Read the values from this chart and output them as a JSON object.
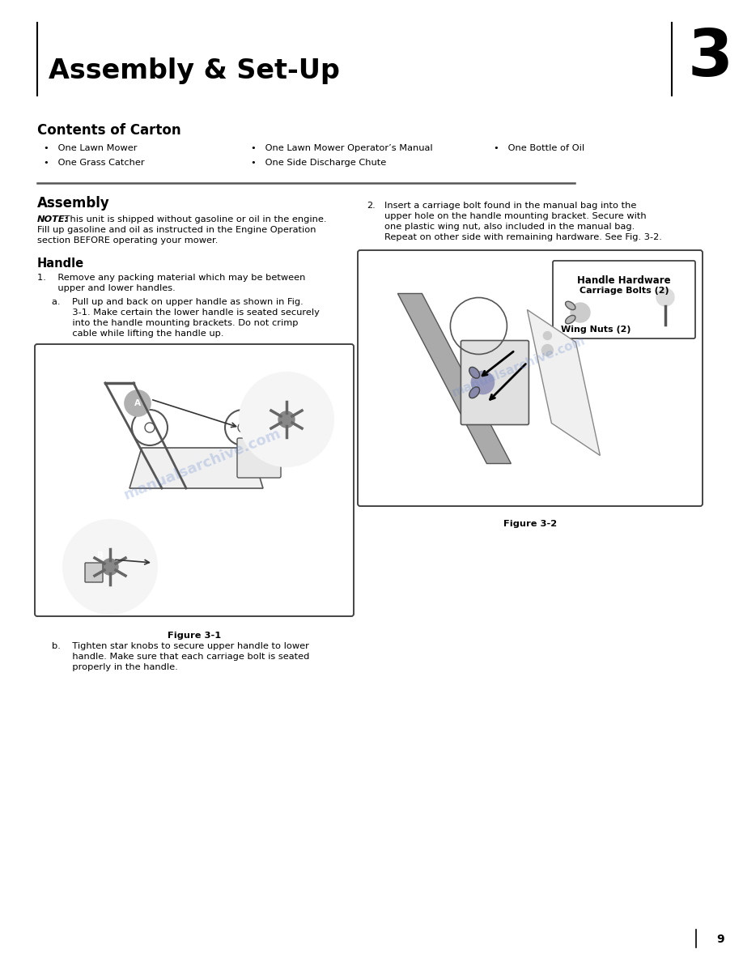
{
  "page_background": "#ffffff",
  "header_title": "Assembly & Set-Up",
  "header_number": "3",
  "header_title_fontsize": 24,
  "header_number_fontsize": 58,
  "section1_title": "Contents of Carton",
  "section1_title_fontsize": 12,
  "bullet_col1_row1": "•   One Lawn Mower",
  "bullet_col1_row2": "•   One Grass Catcher",
  "bullet_col2_row1": "•   One Lawn Mower Operator’s Manual",
  "bullet_col2_row2": "•   One Side Discharge Chute",
  "bullet_col3_row1": "•   One Bottle of Oil",
  "section2_title": "Assembly",
  "section2_title_fontsize": 12,
  "note_bold": "NOTE:",
  "note_rest": " This unit is shipped without gasoline or oil in the engine.",
  "note_line2": "Fill up gasoline and oil as instructed in the Engine Operation",
  "note_line3": "section BEFORE operating your mower.",
  "handle_title": "Handle",
  "handle_title_fontsize": 10.5,
  "step1_line1": "1.    Remove any packing material which may be between",
  "step1_line2": "       upper and lower handles.",
  "step1a_line1": "a.    Pull up and back on upper handle as shown in Fig.",
  "step1a_line2": "       3-1. Make certain the lower handle is seated securely",
  "step1a_line3": "       into the handle mounting brackets. Do not crimp",
  "step1a_line4": "       cable while lifting the handle up.",
  "step1b_line1": "b.    Tighten star knobs to secure upper handle to lower",
  "step1b_line2": "       handle. Make sure that each carriage bolt is seated",
  "step1b_line3": "       properly in the handle.",
  "step2_num": "2.",
  "step2_line1": "Insert a carriage bolt found in the manual bag into the",
  "step2_line2": "upper hole on the handle mounting bracket. Secure with",
  "step2_line3": "one plastic wing nut, also included in the manual bag.",
  "step2_line4": "Repeat on other side with remaining hardware. See Fig. 3-2.",
  "fig1_label": "Figure 3-1",
  "fig2_label": "Figure 3-2",
  "hw_label1": "Handle Hardware",
  "hw_label2": "Carriage Bolts (2)",
  "wing_label": "Wing Nuts (2)",
  "page_number": "9",
  "body_fontsize": 8.2,
  "note_fontsize": 8.2,
  "watermark_text": "manualsarchive.com",
  "watermark_color": "#6688cc",
  "watermark_alpha": 0.28,
  "fig_edge_color": "#444444",
  "fig_bg_color": "#ffffff",
  "header_line_color": "#000000",
  "divider_color": "#555555"
}
